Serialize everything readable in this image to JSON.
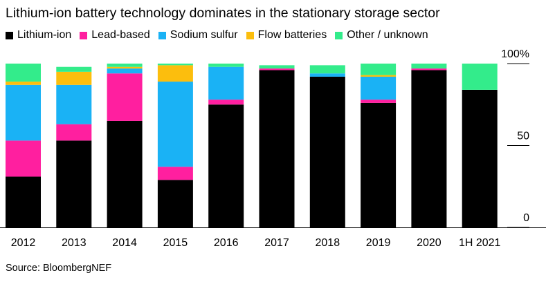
{
  "title": "Lithium-ion battery technology dominates in the stationary storage sector",
  "source": "Source: BloombergNEF",
  "colors": {
    "Lithium-ion": "#000000",
    "Lead-based": "#ff1f9f",
    "Sodium sulfur": "#1ab2f5",
    "Flow batteries": "#fcbe0d",
    "Other / unknown": "#33ec8b"
  },
  "chart_data": {
    "type": "bar",
    "stacked": true,
    "title": "Lithium-ion battery technology dominates in the stationary storage sector",
    "categories": [
      "2012",
      "2013",
      "2014",
      "2015",
      "2016",
      "2017",
      "2018",
      "2019",
      "2020",
      "1H 2021"
    ],
    "yticks": [
      "0",
      "50",
      "100%"
    ],
    "ylim": [
      0,
      100
    ],
    "legend_position": "top-left",
    "series": [
      {
        "name": "Lithium-ion",
        "values": [
          31,
          53,
          65,
          29,
          75,
          96,
          92,
          76,
          96,
          84
        ]
      },
      {
        "name": "Lead-based",
        "values": [
          22,
          10,
          29,
          8,
          3,
          1,
          0,
          2,
          1,
          0
        ]
      },
      {
        "name": "Sodium sulfur",
        "values": [
          34,
          24,
          3,
          52,
          20,
          0,
          2,
          14,
          0,
          0
        ]
      },
      {
        "name": "Flow batteries",
        "values": [
          2,
          8,
          1,
          10,
          0,
          0,
          0,
          1,
          0,
          0
        ]
      },
      {
        "name": "Other / unknown",
        "values": [
          11,
          3,
          2,
          1,
          2,
          2,
          5,
          7,
          3,
          16
        ]
      }
    ]
  }
}
